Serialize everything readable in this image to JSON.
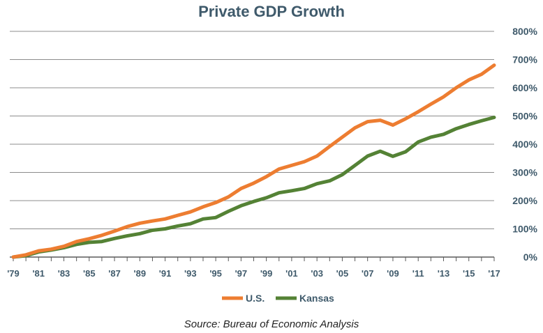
{
  "chart_data": {
    "type": "line",
    "title": "Private GDP Growth",
    "source": "Source: Bureau of Economic Analysis",
    "y_axis_position": "right",
    "ylim": [
      0,
      800
    ],
    "y_ticks": [
      0,
      100,
      200,
      300,
      400,
      500,
      600,
      700,
      800
    ],
    "y_tick_labels": [
      "0%",
      "100%",
      "200%",
      "300%",
      "400%",
      "500%",
      "600%",
      "700%",
      "800%"
    ],
    "x_tick_labels": [
      "'79",
      "'81",
      "'83",
      "'85",
      "'87",
      "'89",
      "'91",
      "'93",
      "'95",
      "'97",
      "'99",
      "'01",
      "'03",
      "'05",
      "'07",
      "'09",
      "'11",
      "'13",
      "'15",
      "'17"
    ],
    "x": [
      1979,
      1980,
      1981,
      1982,
      1983,
      1984,
      1985,
      1986,
      1987,
      1988,
      1989,
      1990,
      1991,
      1992,
      1993,
      1994,
      1995,
      1996,
      1997,
      1998,
      1999,
      2000,
      2001,
      2002,
      2003,
      2004,
      2005,
      2006,
      2007,
      2008,
      2009,
      2010,
      2011,
      2012,
      2013,
      2014,
      2015,
      2016,
      2017
    ],
    "grid": true,
    "legend_position": "bottom",
    "series": [
      {
        "name": "U.S.",
        "color": "#ed7d31",
        "values": [
          0,
          8,
          22,
          28,
          38,
          55,
          65,
          77,
          92,
          108,
          120,
          128,
          135,
          148,
          160,
          178,
          193,
          213,
          243,
          262,
          285,
          312,
          325,
          338,
          358,
          392,
          425,
          458,
          480,
          485,
          468,
          490,
          515,
          542,
          568,
          600,
          628,
          648,
          680
        ]
      },
      {
        "name": "Kansas",
        "color": "#548235",
        "values": [
          0,
          5,
          18,
          25,
          33,
          45,
          52,
          55,
          66,
          75,
          83,
          95,
          100,
          110,
          118,
          135,
          140,
          162,
          182,
          197,
          210,
          228,
          235,
          243,
          260,
          270,
          292,
          325,
          358,
          375,
          357,
          373,
          408,
          425,
          435,
          455,
          470,
          483,
          495
        ]
      }
    ]
  }
}
